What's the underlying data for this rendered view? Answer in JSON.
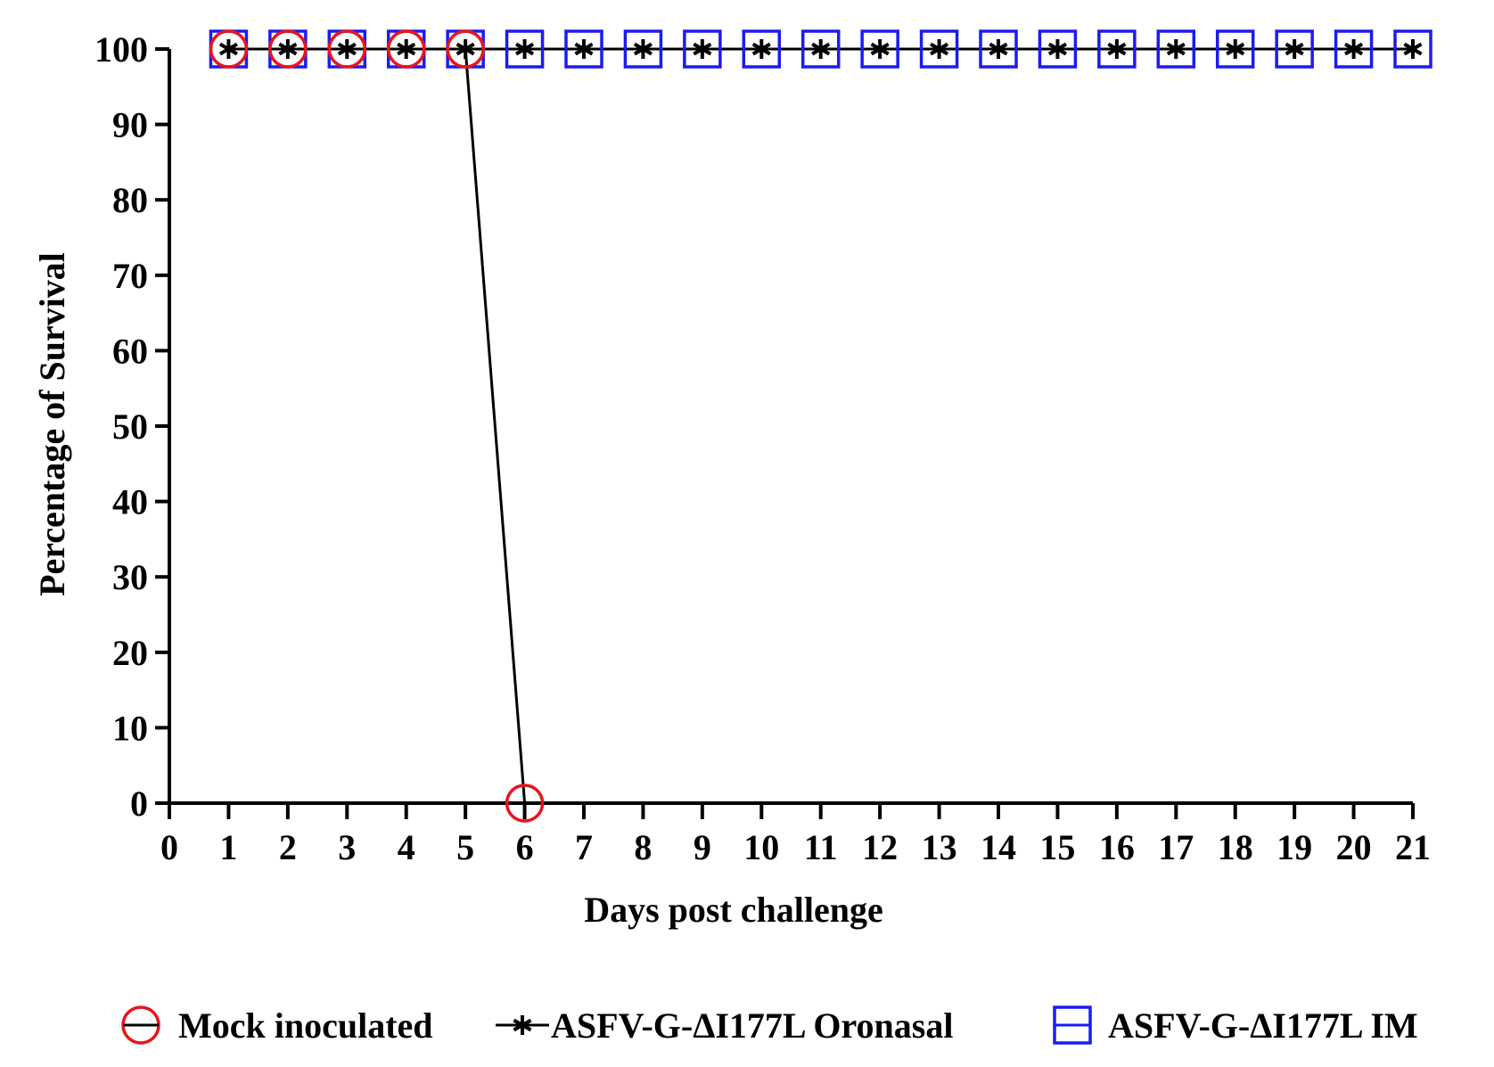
{
  "chart_data": {
    "type": "line",
    "title": "",
    "xlabel": "Days post challenge",
    "ylabel": "Percentage of Survival",
    "xlim": [
      0,
      21
    ],
    "ylim": [
      0,
      100
    ],
    "x_ticks": [
      "0",
      "1",
      "2",
      "3",
      "4",
      "5",
      "6",
      "7",
      "8",
      "9",
      "10",
      "11",
      "12",
      "13",
      "14",
      "15",
      "16",
      "17",
      "18",
      "19",
      "20",
      "21"
    ],
    "y_ticks": [
      "0",
      "10",
      "20",
      "30",
      "40",
      "50",
      "60",
      "70",
      "80",
      "90",
      "100"
    ],
    "grid": false,
    "legend_position": "bottom",
    "series": [
      {
        "name": "Mock inoculated",
        "marker": "open-circle",
        "color": "#e8141c",
        "x": [
          1,
          2,
          3,
          4,
          5,
          6
        ],
        "y": [
          100,
          100,
          100,
          100,
          100,
          0
        ]
      },
      {
        "name": "ASFV-G-ΔI177L Oronasal",
        "marker": "asterisk",
        "color": "#000000",
        "x": [
          1,
          2,
          3,
          4,
          5,
          6,
          7,
          8,
          9,
          10,
          11,
          12,
          13,
          14,
          15,
          16,
          17,
          18,
          19,
          20,
          21
        ],
        "y": [
          100,
          100,
          100,
          100,
          100,
          100,
          100,
          100,
          100,
          100,
          100,
          100,
          100,
          100,
          100,
          100,
          100,
          100,
          100,
          100,
          100
        ]
      },
      {
        "name": "ASFV-G-ΔI177L IM",
        "marker": "open-square",
        "color": "#1b1bf2",
        "x": [
          1,
          2,
          3,
          4,
          5,
          6,
          7,
          8,
          9,
          10,
          11,
          12,
          13,
          14,
          15,
          16,
          17,
          18,
          19,
          20,
          21
        ],
        "y": [
          100,
          100,
          100,
          100,
          100,
          100,
          100,
          100,
          100,
          100,
          100,
          100,
          100,
          100,
          100,
          100,
          100,
          100,
          100,
          100,
          100
        ]
      }
    ]
  }
}
